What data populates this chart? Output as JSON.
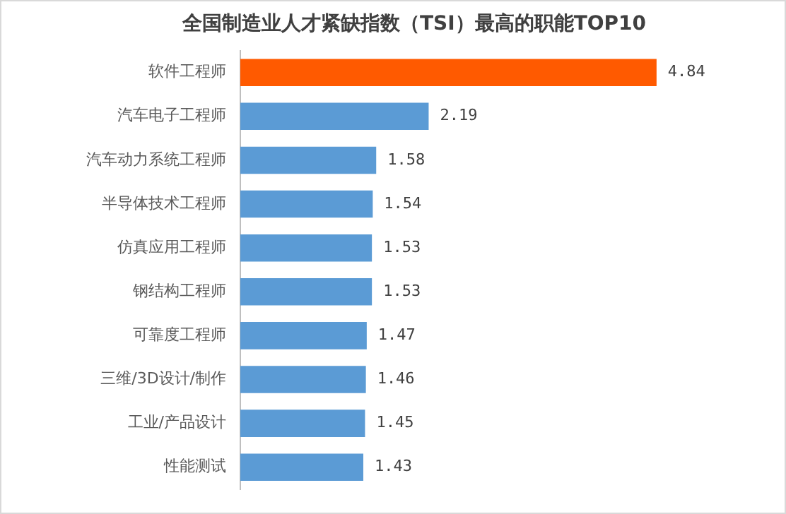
{
  "chart_data": {
    "type": "bar",
    "orientation": "horizontal",
    "title": "全国制造业人才紧缺指数（TSI）最高的职能TOP10",
    "categories": [
      "软件工程师",
      "汽车电子工程师",
      "汽车动力系统工程师",
      "半导体技术工程师",
      "仿真应用工程师",
      "钢结构工程师",
      "可靠度工程师",
      "三维/3D设计/制作",
      "工业/产品设计",
      "性能测试"
    ],
    "values": [
      4.84,
      2.19,
      1.58,
      1.54,
      1.53,
      1.53,
      1.47,
      1.46,
      1.45,
      1.43
    ],
    "colors": [
      "#ff5a00",
      "#5b9bd5",
      "#5b9bd5",
      "#5b9bd5",
      "#5b9bd5",
      "#5b9bd5",
      "#5b9bd5",
      "#5b9bd5",
      "#5b9bd5",
      "#5b9bd5"
    ],
    "data_labels": true,
    "legend": false
  }
}
